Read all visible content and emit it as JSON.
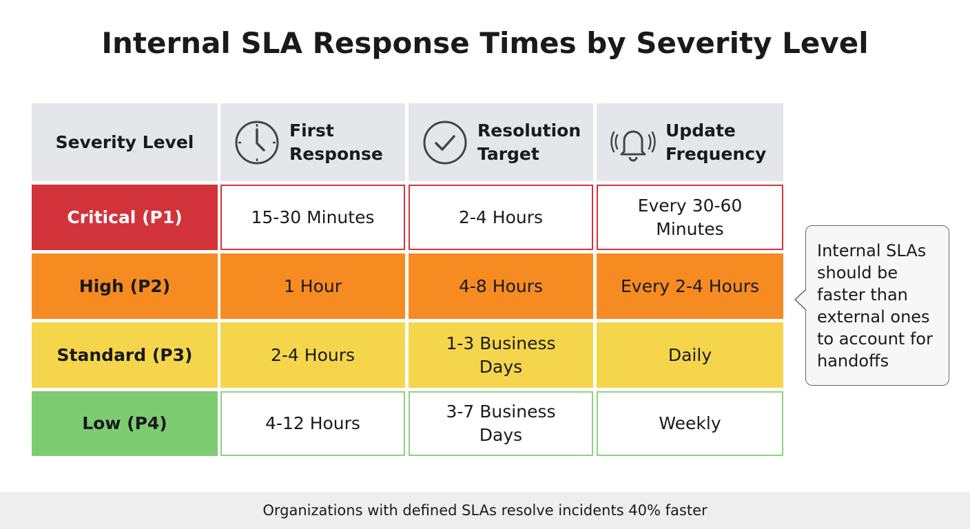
{
  "title": "Internal SLA Response Times by Severity Level",
  "table": {
    "headers": [
      "Severity Level",
      "First Response",
      "Resolution Target",
      "Update Frequency"
    ],
    "rows": [
      [
        "Critical (P1)",
        "15-30 Minutes",
        "2-4 Hours",
        "Every 30-60 Minutes"
      ],
      [
        "High (P2)",
        "1 Hour",
        "4-8 Hours",
        "Every 2-4 Hours"
      ],
      [
        "Standard (P3)",
        "2-4 Hours",
        "1-3 Business Days",
        "Daily"
      ],
      [
        "Low (P4)",
        "4-12 Hours",
        "3-7 Business Days",
        "Weekly"
      ]
    ]
  },
  "callout": "Internal SLAs should be faster than external ones to account for handoffs",
  "footer": "Organizations with defined SLAs resolve incidents 40% faster"
}
